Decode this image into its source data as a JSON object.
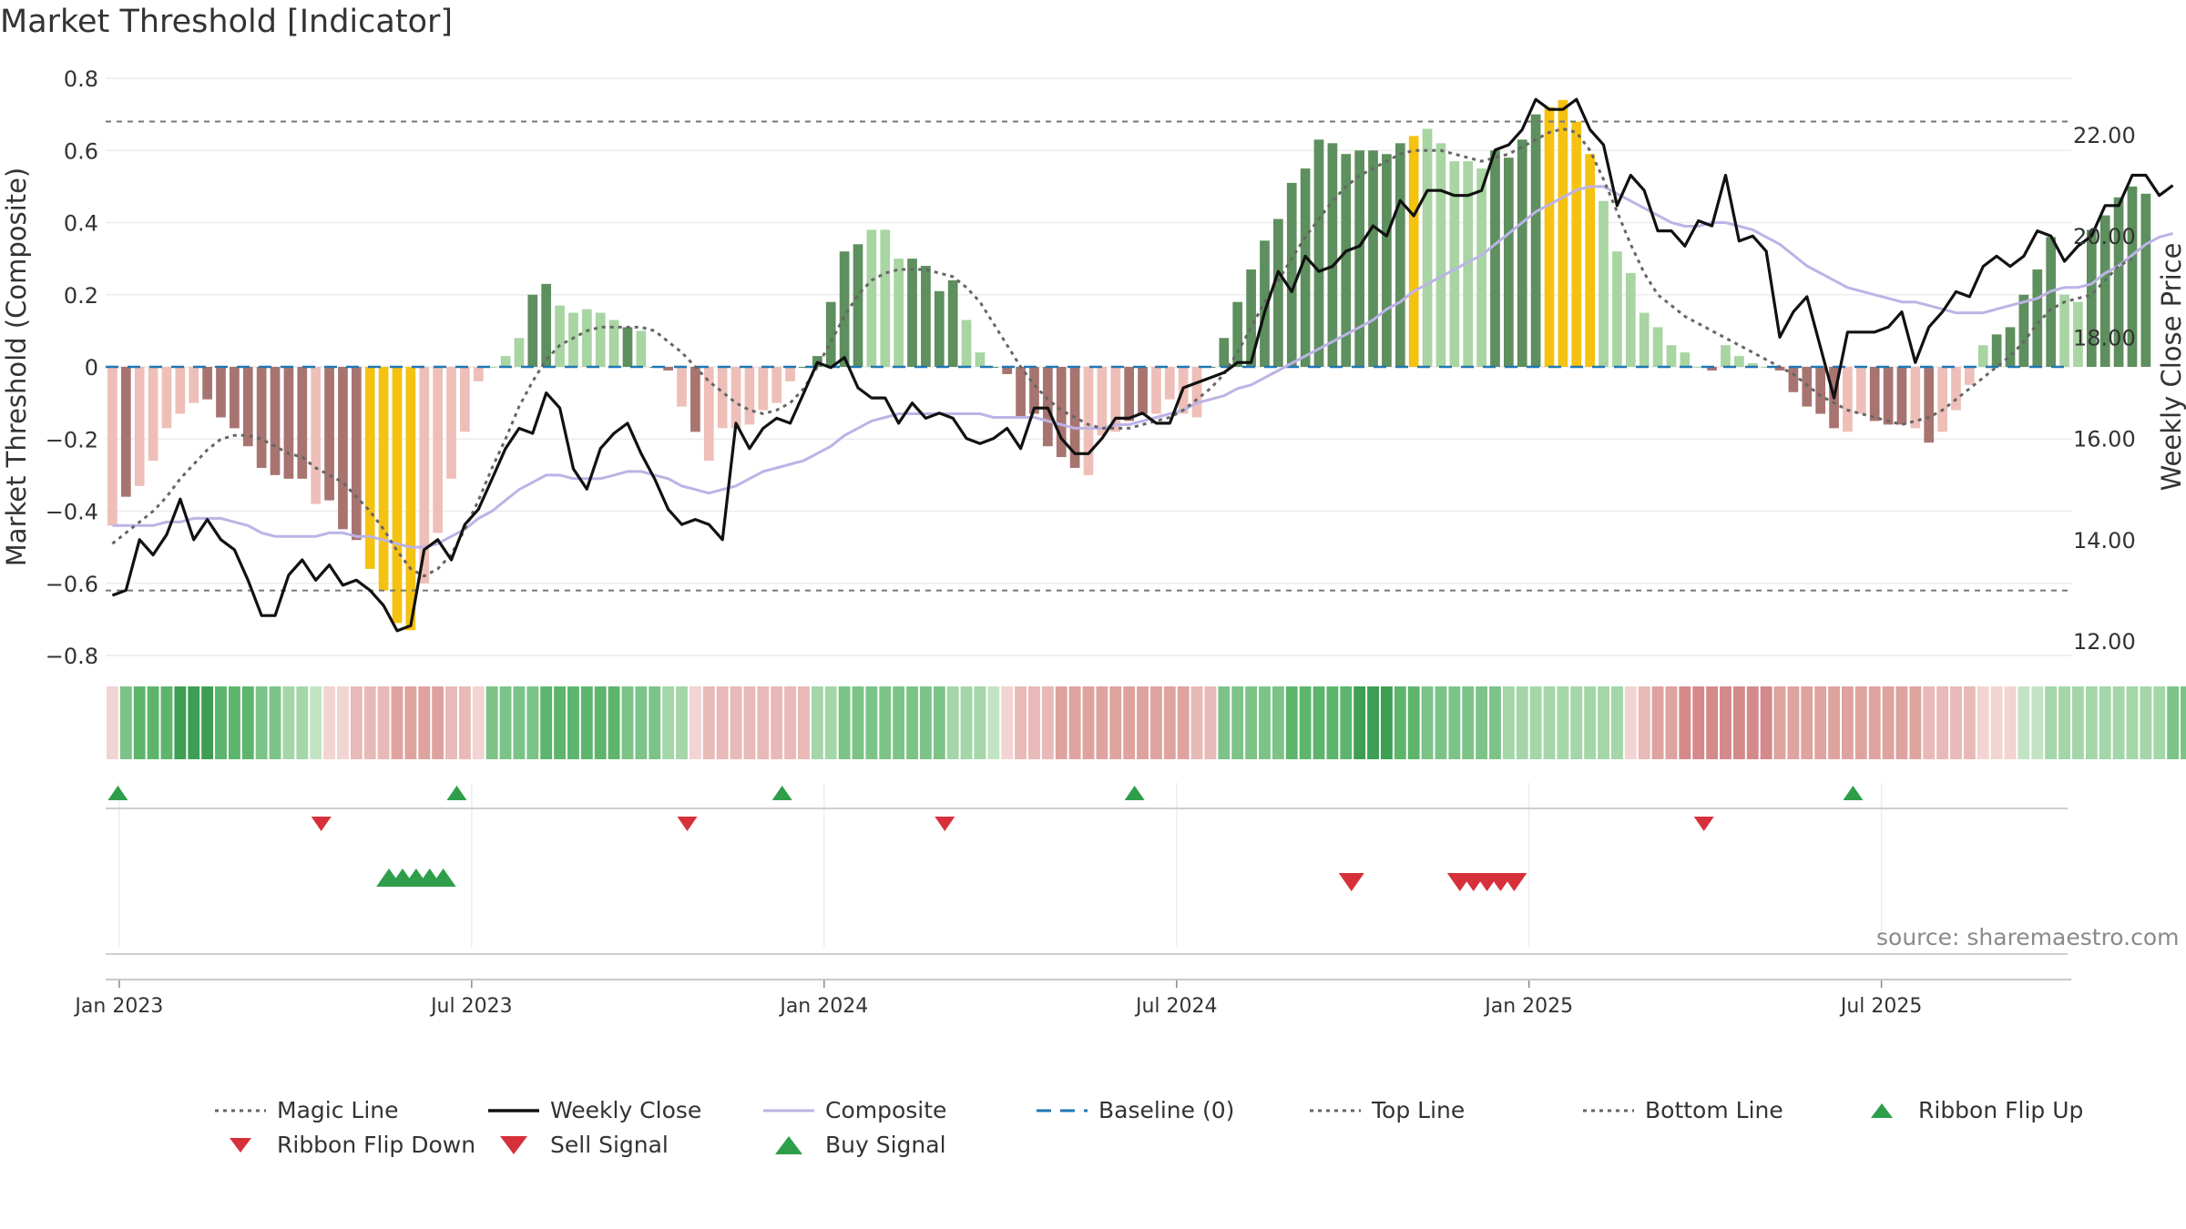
{
  "title": "Market Threshold [Indicator]",
  "source": "source: sharemaestro.com",
  "colors": {
    "strong_pos": "#5e8f5e",
    "weak_pos": "#a8d5a2",
    "strong_neg": "#a87470",
    "weak_neg": "#eebfb8",
    "extreme": "#f5c211",
    "weekly_close": "#111111",
    "composite": "#bdb3e6",
    "magic_line": "#666666",
    "baseline": "#1f77b4",
    "threshold_lines": "#777777",
    "signal_up": "#2e9e4a",
    "signal_down": "#d7303b",
    "ribbon_green": "#3fa457",
    "ribbon_red": "#cc7470"
  },
  "legend": [
    {
      "label": "Magic Line",
      "icon": "dotted-line-icon"
    },
    {
      "label": "Weekly Close",
      "icon": "solid-line-icon"
    },
    {
      "label": "Composite",
      "icon": "composite-line-icon"
    },
    {
      "label": "Baseline (0)",
      "icon": "dashed-line-icon"
    },
    {
      "label": "Top Line",
      "icon": "dotted-line-icon"
    },
    {
      "label": "Bottom Line",
      "icon": "dotted-line-icon"
    },
    {
      "label": "Ribbon Flip Up",
      "icon": "triangle-up-icon"
    },
    {
      "label": "Ribbon Flip Down",
      "icon": "triangle-down-icon"
    },
    {
      "label": "Sell Signal",
      "icon": "triangle-down-icon"
    },
    {
      "label": "Buy Signal",
      "icon": "triangle-up-icon"
    }
  ],
  "chart_data": {
    "type": "bar",
    "ylabel": "Market Threshold (Composite)",
    "y2label": "Weekly Close Price",
    "ylim": [
      -0.8,
      0.8
    ],
    "y_ticks": [
      "0.8",
      "0.6",
      "0.4",
      "0.2",
      "0",
      "−0.2",
      "−0.4",
      "−0.6",
      "−0.8"
    ],
    "y2lim": [
      12.0,
      22.0
    ],
    "y2_ticks": [
      "22.00",
      "20.00",
      "18.00",
      "16.00",
      "14.00",
      "12.00"
    ],
    "x_ticks": [
      "Jan 2023",
      "Jul 2023",
      "Jan 2024",
      "Jul 2024",
      "Jan 2025",
      "Jul 2025"
    ],
    "x_tick_weeks": [
      1,
      27,
      53,
      79,
      105,
      131
    ],
    "top_line": 0.68,
    "bottom_line": -0.62,
    "baseline": 0,
    "weeks": 145,
    "composite_bars": [
      -0.44,
      -0.36,
      -0.33,
      -0.26,
      -0.17,
      -0.13,
      -0.1,
      -0.09,
      -0.14,
      -0.17,
      -0.22,
      -0.28,
      -0.3,
      -0.31,
      -0.31,
      -0.38,
      -0.37,
      -0.45,
      -0.48,
      -0.56,
      -0.62,
      -0.71,
      -0.73,
      -0.6,
      -0.46,
      -0.31,
      -0.18,
      -0.04,
      0,
      0.03,
      0.08,
      0.2,
      0.23,
      0.17,
      0.15,
      0.16,
      0.15,
      0.13,
      0.11,
      0.1,
      0,
      -0.01,
      -0.11,
      -0.18,
      -0.26,
      -0.17,
      -0.17,
      -0.16,
      -0.12,
      -0.1,
      -0.04,
      0,
      0.03,
      0.18,
      0.32,
      0.34,
      0.38,
      0.38,
      0.3,
      0.3,
      0.28,
      0.21,
      0.24,
      0.13,
      0.04,
      0,
      -0.02,
      -0.14,
      -0.13,
      -0.22,
      -0.25,
      -0.28,
      -0.3,
      -0.19,
      -0.18,
      -0.15,
      -0.13,
      -0.13,
      -0.09,
      -0.13,
      -0.14,
      0,
      0.08,
      0.18,
      0.27,
      0.35,
      0.41,
      0.51,
      0.55,
      0.63,
      0.62,
      0.59,
      0.6,
      0.6,
      0.59,
      0.62,
      0.64,
      0.66,
      0.62,
      0.57,
      0.57,
      0.55,
      0.6,
      0.58,
      0.63,
      0.7,
      0.72,
      0.74,
      0.68,
      0.59,
      0.46,
      0.32,
      0.26,
      0.15,
      0.11,
      0.06,
      0.04,
      0,
      -0.01,
      0.06,
      0.03,
      0.01,
      0,
      -0.01,
      -0.07,
      -0.11,
      -0.13,
      -0.17,
      -0.18,
      -0.13,
      -0.15,
      -0.16,
      -0.16,
      -0.17,
      -0.21,
      -0.18,
      -0.12,
      -0.05,
      0.06,
      0.09,
      0.11,
      0.2,
      0.27,
      0.36,
      0.2,
      0.18,
      0.38,
      0.42,
      0.47,
      0.5,
      0.48
    ],
    "bar_styles": "wSwwwwwSSSSSSSSwSSSEEEEwwwwwwwwSSwwwwwSwSSwSwwwwwwwSSSSSwwwSSSSwwSSSSSSSwwwSSwwwwSSSSSSSSSSSSSSSEwwwwwSSSSEEEEwwwwwwwwSwwwwSSSSSwwSSSwSwwwwSSSSSwwSSSSSw",
    "weekly_close": [
      12.9,
      13.0,
      14.0,
      13.7,
      14.1,
      14.8,
      14.0,
      14.4,
      14.0,
      13.8,
      13.2,
      12.5,
      12.5,
      13.3,
      13.6,
      13.2,
      13.5,
      13.1,
      13.2,
      13.0,
      12.7,
      12.2,
      12.3,
      13.8,
      14.0,
      13.6,
      14.3,
      14.6,
      15.2,
      15.8,
      16.2,
      16.1,
      16.9,
      16.6,
      15.4,
      15.0,
      15.8,
      16.1,
      16.3,
      15.7,
      15.2,
      14.6,
      14.3,
      14.4,
      14.3,
      14.0,
      16.3,
      15.8,
      16.2,
      16.4,
      16.3,
      16.9,
      17.5,
      17.4,
      17.6,
      17.0,
      16.8,
      16.8,
      16.3,
      16.7,
      16.4,
      16.5,
      16.4,
      16.0,
      15.9,
      16.0,
      16.2,
      15.8,
      16.6,
      16.6,
      16.0,
      15.7,
      15.7,
      16.0,
      16.4,
      16.4,
      16.5,
      16.3,
      16.3,
      17.0,
      17.1,
      17.2,
      17.3,
      17.5,
      17.5,
      18.5,
      19.3,
      18.9,
      19.6,
      19.3,
      19.4,
      19.7,
      19.8,
      20.2,
      20.0,
      20.7,
      20.4,
      20.9,
      20.9,
      20.8,
      20.8,
      20.9,
      21.7,
      21.8,
      22.1,
      22.7,
      22.5,
      22.5,
      22.7,
      22.1,
      21.8,
      20.6,
      21.2,
      20.9,
      20.1,
      20.1,
      19.8,
      20.3,
      20.2,
      21.2,
      19.9,
      20.0,
      19.7,
      18.0,
      18.5,
      18.8,
      17.8,
      16.8,
      18.1,
      18.1,
      18.1,
      18.2,
      18.5,
      17.5,
      18.2,
      18.5,
      18.9,
      18.8,
      19.4,
      19.6,
      19.4,
      19.6,
      20.1,
      20.0,
      19.5,
      19.8,
      20.0,
      20.6,
      20.6,
      21.2,
      21.2,
      20.8,
      21.0
    ],
    "composite_line": [
      -0.44,
      -0.44,
      -0.44,
      -0.44,
      -0.43,
      -0.43,
      -0.42,
      -0.42,
      -0.42,
      -0.43,
      -0.44,
      -0.46,
      -0.47,
      -0.47,
      -0.47,
      -0.47,
      -0.46,
      -0.46,
      -0.47,
      -0.47,
      -0.48,
      -0.49,
      -0.5,
      -0.5,
      -0.49,
      -0.47,
      -0.45,
      -0.42,
      -0.4,
      -0.37,
      -0.34,
      -0.32,
      -0.3,
      -0.3,
      -0.31,
      -0.31,
      -0.31,
      -0.3,
      -0.29,
      -0.29,
      -0.3,
      -0.31,
      -0.33,
      -0.34,
      -0.35,
      -0.34,
      -0.33,
      -0.31,
      -0.29,
      -0.28,
      -0.27,
      -0.26,
      -0.24,
      -0.22,
      -0.19,
      -0.17,
      -0.15,
      -0.14,
      -0.13,
      -0.13,
      -0.13,
      -0.13,
      -0.13,
      -0.13,
      -0.13,
      -0.14,
      -0.14,
      -0.14,
      -0.14,
      -0.15,
      -0.16,
      -0.17,
      -0.17,
      -0.17,
      -0.16,
      -0.16,
      -0.15,
      -0.14,
      -0.13,
      -0.12,
      -0.1,
      -0.09,
      -0.08,
      -0.06,
      -0.05,
      -0.03,
      -0.01,
      0.01,
      0.03,
      0.05,
      0.07,
      0.09,
      0.11,
      0.13,
      0.16,
      0.18,
      0.21,
      0.23,
      0.25,
      0.27,
      0.29,
      0.31,
      0.34,
      0.37,
      0.4,
      0.43,
      0.45,
      0.47,
      0.49,
      0.5,
      0.5,
      0.48,
      0.46,
      0.44,
      0.42,
      0.4,
      0.39,
      0.39,
      0.4,
      0.4,
      0.39,
      0.38,
      0.36,
      0.34,
      0.31,
      0.28,
      0.26,
      0.24,
      0.22,
      0.21,
      0.2,
      0.19,
      0.18,
      0.18,
      0.17,
      0.16,
      0.15,
      0.15,
      0.15,
      0.16,
      0.17,
      0.18,
      0.19,
      0.21,
      0.22,
      0.22,
      0.23,
      0.26,
      0.28,
      0.31,
      0.34,
      0.36,
      0.37
    ],
    "magic_line": [
      -0.49,
      -0.46,
      -0.43,
      -0.4,
      -0.36,
      -0.31,
      -0.27,
      -0.23,
      -0.2,
      -0.19,
      -0.19,
      -0.2,
      -0.22,
      -0.24,
      -0.25,
      -0.28,
      -0.3,
      -0.32,
      -0.36,
      -0.4,
      -0.45,
      -0.51,
      -0.56,
      -0.58,
      -0.56,
      -0.52,
      -0.45,
      -0.37,
      -0.28,
      -0.2,
      -0.11,
      -0.04,
      0.02,
      0.06,
      0.08,
      0.1,
      0.11,
      0.11,
      0.11,
      0.11,
      0.1,
      0.07,
      0.04,
      0,
      -0.04,
      -0.07,
      -0.1,
      -0.12,
      -0.13,
      -0.12,
      -0.1,
      -0.06,
      0,
      0.07,
      0.14,
      0.2,
      0.24,
      0.26,
      0.27,
      0.27,
      0.27,
      0.26,
      0.25,
      0.22,
      0.18,
      0.12,
      0.06,
      0,
      -0.05,
      -0.09,
      -0.12,
      -0.14,
      -0.16,
      -0.17,
      -0.17,
      -0.17,
      -0.16,
      -0.15,
      -0.14,
      -0.12,
      -0.09,
      -0.06,
      -0.02,
      0.04,
      0.11,
      0.18,
      0.24,
      0.3,
      0.36,
      0.41,
      0.46,
      0.5,
      0.53,
      0.55,
      0.57,
      0.59,
      0.6,
      0.6,
      0.6,
      0.59,
      0.58,
      0.57,
      0.58,
      0.59,
      0.61,
      0.63,
      0.65,
      0.66,
      0.65,
      0.6,
      0.52,
      0.43,
      0.34,
      0.26,
      0.2,
      0.17,
      0.14,
      0.12,
      0.1,
      0.08,
      0.06,
      0.04,
      0.02,
      0,
      -0.02,
      -0.05,
      -0.08,
      -0.1,
      -0.12,
      -0.13,
      -0.14,
      -0.15,
      -0.16,
      -0.15,
      -0.14,
      -0.12,
      -0.09,
      -0.06,
      -0.03,
      0,
      0.03,
      0.07,
      0.12,
      0.16,
      0.18,
      0.19,
      0.2,
      0.24,
      0.28,
      0.3
    ],
    "ribbon_strength": [
      -1,
      3,
      4,
      4,
      4,
      5,
      5,
      5,
      4,
      4,
      4,
      3,
      3,
      2,
      2,
      1,
      -1,
      -1,
      -2,
      -2,
      -2,
      -3,
      -3,
      -3,
      -3,
      -2,
      -2,
      -1,
      3,
      3,
      3,
      3,
      4,
      4,
      4,
      4,
      4,
      4,
      3,
      3,
      3,
      2,
      2,
      -1,
      -2,
      -2,
      -2,
      -2,
      -2,
      -2,
      -2,
      -2,
      2,
      2,
      3,
      3,
      3,
      3,
      3,
      3,
      3,
      3,
      2,
      2,
      2,
      1,
      -1,
      -2,
      -2,
      -2,
      -3,
      -3,
      -3,
      -3,
      -3,
      -3,
      -3,
      -3,
      -3,
      -3,
      -2,
      -2,
      3,
      3,
      3,
      3,
      3,
      4,
      4,
      4,
      4,
      4,
      5,
      5,
      5,
      4,
      4,
      3,
      3,
      3,
      3,
      3,
      3,
      2,
      2,
      2,
      2,
      2,
      2,
      2,
      2,
      2,
      -1,
      -2,
      -3,
      -3,
      -4,
      -4,
      -4,
      -4,
      -4,
      -4,
      -4,
      -3,
      -3,
      -3,
      -3,
      -3,
      -3,
      -3,
      -3,
      -3,
      -3,
      -3,
      -2,
      -2,
      -2,
      -2,
      -1,
      -1,
      -1,
      1,
      1,
      2,
      2,
      2,
      2,
      2,
      2,
      2,
      2,
      2,
      3,
      3,
      3
    ],
    "ribbon_flip_up_weeks": [
      0,
      25,
      49,
      75,
      128
    ],
    "ribbon_flip_down_weeks": [
      15,
      42,
      61,
      117
    ],
    "buy_signal_weeks": [
      20,
      21,
      22,
      23,
      24
    ],
    "sell_signal_weeks": [
      91,
      99,
      100,
      101,
      102,
      103
    ]
  }
}
